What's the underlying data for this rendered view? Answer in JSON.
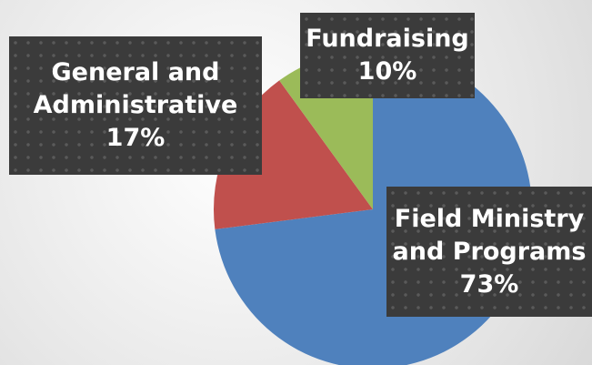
{
  "chart_data": {
    "type": "pie",
    "categories": [
      "Field Ministry and Programs",
      "General and Administrative",
      "Fundraising"
    ],
    "values": [
      73,
      17,
      10
    ],
    "value_labels": [
      "73%",
      "17%",
      "10%"
    ],
    "colors": [
      "#4f81bd",
      "#c0504d",
      "#9bbb59"
    ]
  }
}
